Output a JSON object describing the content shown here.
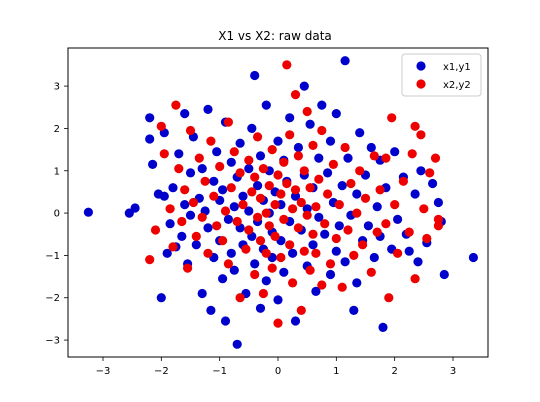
{
  "chart_data": {
    "type": "scatter",
    "title": "X1 vs X2: raw data",
    "xlabel": "",
    "ylabel": "",
    "xlim": [
      -3.6,
      3.6
    ],
    "ylim": [
      -3.4,
      3.9
    ],
    "xticks": [
      -3,
      -2,
      -1,
      0,
      1,
      2,
      3
    ],
    "yticks": [
      -3,
      -2,
      -1,
      0,
      1,
      2,
      3
    ],
    "grid": false,
    "legend_position": "top-right",
    "series": [
      {
        "name": "x1,y1",
        "color": "#0000cc",
        "points": [
          [
            -3.25,
            0.02
          ],
          [
            -2.55,
            0.0
          ],
          [
            -2.45,
            0.12
          ],
          [
            -2.2,
            2.25
          ],
          [
            -2.2,
            1.75
          ],
          [
            -2.15,
            1.15
          ],
          [
            -2.05,
            0.45
          ],
          [
            -2.0,
            -2.0
          ],
          [
            -1.95,
            0.4
          ],
          [
            -1.95,
            1.9
          ],
          [
            -1.9,
            -0.95
          ],
          [
            -1.85,
            -0.25
          ],
          [
            -1.8,
            0.6
          ],
          [
            -1.75,
            -0.8
          ],
          [
            -1.7,
            1.4
          ],
          [
            -1.65,
            -0.55
          ],
          [
            -1.6,
            2.35
          ],
          [
            -1.6,
            0.2
          ],
          [
            -1.55,
            -1.2
          ],
          [
            -1.5,
            0.95
          ],
          [
            -1.5,
            -0.05
          ],
          [
            -1.45,
            1.8
          ],
          [
            -1.4,
            -0.75
          ],
          [
            -1.35,
            0.35
          ],
          [
            -1.3,
            -1.9
          ],
          [
            -1.3,
            1.05
          ],
          [
            -1.25,
            0.05
          ],
          [
            -1.2,
            -0.35
          ],
          [
            -1.2,
            2.45
          ],
          [
            -1.15,
            -2.3
          ],
          [
            -1.1,
            0.75
          ],
          [
            -1.1,
            -1.05
          ],
          [
            -1.05,
            1.45
          ],
          [
            -1.0,
            -0.65
          ],
          [
            -1.0,
            0.3
          ],
          [
            -0.95,
            -1.55
          ],
          [
            -0.95,
            0.55
          ],
          [
            -0.9,
            -2.55
          ],
          [
            -0.9,
            2.15
          ],
          [
            -0.85,
            -0.15
          ],
          [
            -0.8,
            1.2
          ],
          [
            -0.8,
            -0.95
          ],
          [
            -0.75,
            0.15
          ],
          [
            -0.75,
            -1.35
          ],
          [
            -0.7,
            -3.1
          ],
          [
            -0.7,
            0.85
          ],
          [
            -0.65,
            -0.35
          ],
          [
            -0.65,
            1.65
          ],
          [
            -0.6,
            0.4
          ],
          [
            -0.6,
            -0.75
          ],
          [
            -0.55,
            -1.9
          ],
          [
            -0.5,
            1.05
          ],
          [
            -0.5,
            0.05
          ],
          [
            -0.45,
            -0.55
          ],
          [
            -0.45,
            2.0
          ],
          [
            -0.4,
            -1.2
          ],
          [
            -0.4,
            3.25
          ],
          [
            -0.35,
            0.65
          ],
          [
            -0.35,
            -0.2
          ],
          [
            -0.3,
            -2.25
          ],
          [
            -0.3,
            1.35
          ],
          [
            -0.25,
            -0.85
          ],
          [
            -0.25,
            0.3
          ],
          [
            -0.2,
            -1.6
          ],
          [
            -0.2,
            2.55
          ],
          [
            -0.15,
            0.0
          ],
          [
            -0.15,
            1.0
          ],
          [
            -0.1,
            -0.45
          ],
          [
            -0.1,
            -1.05
          ],
          [
            -0.05,
            0.5
          ],
          [
            0.0,
            1.7
          ],
          [
            0.0,
            -2.05
          ],
          [
            0.05,
            0.2
          ],
          [
            0.05,
            -0.65
          ],
          [
            0.1,
            1.25
          ],
          [
            0.1,
            -1.4
          ],
          [
            0.15,
            0.75
          ],
          [
            0.2,
            -0.2
          ],
          [
            0.2,
            2.25
          ],
          [
            0.25,
            -0.95
          ],
          [
            0.3,
            0.4
          ],
          [
            0.3,
            -2.55
          ],
          [
            0.35,
            1.55
          ],
          [
            0.4,
            -0.4
          ],
          [
            0.45,
            3.0
          ],
          [
            0.45,
            0.9
          ],
          [
            0.5,
            -1.25
          ],
          [
            0.5,
            0.1
          ],
          [
            0.55,
            2.1
          ],
          [
            0.6,
            -0.75
          ],
          [
            0.6,
            0.6
          ],
          [
            0.65,
            -1.85
          ],
          [
            0.7,
            1.3
          ],
          [
            0.7,
            -0.1
          ],
          [
            0.75,
            2.55
          ],
          [
            0.8,
            -0.5
          ],
          [
            0.85,
            0.95
          ],
          [
            0.9,
            -1.45
          ],
          [
            0.9,
            1.7
          ],
          [
            0.95,
            0.25
          ],
          [
            1.0,
            -0.9
          ],
          [
            1.0,
            2.35
          ],
          [
            1.05,
            -0.3
          ],
          [
            1.1,
            0.65
          ],
          [
            1.15,
            3.6
          ],
          [
            1.15,
            -1.15
          ],
          [
            1.2,
            1.3
          ],
          [
            1.25,
            -0.05
          ],
          [
            1.3,
            -2.3
          ],
          [
            1.35,
            0.45
          ],
          [
            1.35,
            -1.65
          ],
          [
            1.4,
            1.9
          ],
          [
            1.45,
            -0.65
          ],
          [
            1.5,
            0.9
          ],
          [
            1.55,
            -0.3
          ],
          [
            1.6,
            1.55
          ],
          [
            1.65,
            -1.05
          ],
          [
            1.7,
            0.15
          ],
          [
            1.75,
            -0.55
          ],
          [
            1.75,
            1.25
          ],
          [
            1.8,
            -2.7
          ],
          [
            1.85,
            0.6
          ],
          [
            1.95,
            -0.85
          ],
          [
            2.0,
            1.45
          ],
          [
            2.05,
            -0.15
          ],
          [
            2.15,
            0.85
          ],
          [
            2.2,
            -0.5
          ],
          [
            2.25,
            -0.9
          ],
          [
            2.35,
            0.45
          ],
          [
            2.4,
            -1.15
          ],
          [
            2.45,
            1.0
          ],
          [
            2.55,
            -0.7
          ],
          [
            2.65,
            0.7
          ],
          [
            2.75,
            0.25
          ],
          [
            2.8,
            -0.2
          ],
          [
            2.85,
            -1.45
          ],
          [
            3.35,
            -1.05
          ]
        ]
      },
      {
        "name": "x2,y2",
        "color": "#ee0000",
        "points": [
          [
            -2.2,
            -1.1
          ],
          [
            -2.1,
            -0.4
          ],
          [
            -2.0,
            2.05
          ],
          [
            -1.95,
            1.4
          ],
          [
            -1.85,
            0.1
          ],
          [
            -1.8,
            -0.8
          ],
          [
            -1.75,
            2.55
          ],
          [
            -1.7,
            1.05
          ],
          [
            -1.65,
            -0.2
          ],
          [
            -1.6,
            0.55
          ],
          [
            -1.55,
            -1.3
          ],
          [
            -1.5,
            1.95
          ],
          [
            -1.45,
            0.25
          ],
          [
            -1.4,
            -0.55
          ],
          [
            -1.35,
            1.3
          ],
          [
            -1.3,
            -0.1
          ],
          [
            -1.25,
            0.75
          ],
          [
            -1.2,
            -0.95
          ],
          [
            -1.15,
            1.7
          ],
          [
            -1.1,
            0.4
          ],
          [
            -1.05,
            -0.3
          ],
          [
            -1.0,
            1.1
          ],
          [
            -0.95,
            -0.65
          ],
          [
            -0.9,
            0.05
          ],
          [
            -0.85,
            2.15
          ],
          [
            -0.85,
            -1.2
          ],
          [
            -0.8,
            0.6
          ],
          [
            -0.75,
            1.45
          ],
          [
            -0.7,
            -0.2
          ],
          [
            -0.65,
            -2.0
          ],
          [
            -0.65,
            0.95
          ],
          [
            -0.6,
            0.2
          ],
          [
            -0.55,
            -0.85
          ],
          [
            -0.5,
            1.25
          ],
          [
            -0.5,
            -0.4
          ],
          [
            -0.45,
            0.5
          ],
          [
            -0.4,
            -1.45
          ],
          [
            -0.4,
            0.85
          ],
          [
            -0.35,
            -0.1
          ],
          [
            -0.35,
            1.8
          ],
          [
            -0.3,
            -0.65
          ],
          [
            -0.3,
            0.35
          ],
          [
            -0.25,
            -1.9
          ],
          [
            -0.25,
            1.05
          ],
          [
            -0.2,
            0.0
          ],
          [
            -0.2,
            -0.95
          ],
          [
            -0.15,
            0.65
          ],
          [
            -0.15,
            -0.3
          ],
          [
            -0.1,
            1.5
          ],
          [
            -0.1,
            -1.3
          ],
          [
            -0.05,
            0.2
          ],
          [
            -0.05,
            -0.55
          ],
          [
            0.0,
            0.9
          ],
          [
            0.0,
            -2.6
          ],
          [
            0.05,
            0.45
          ],
          [
            0.05,
            -1.05
          ],
          [
            0.1,
            1.2
          ],
          [
            0.1,
            -0.15
          ],
          [
            0.15,
            3.5
          ],
          [
            0.15,
            0.7
          ],
          [
            0.2,
            -0.75
          ],
          [
            0.2,
            1.85
          ],
          [
            0.25,
            0.1
          ],
          [
            0.25,
            -1.65
          ],
          [
            0.3,
            2.8
          ],
          [
            0.3,
            0.55
          ],
          [
            0.35,
            -0.35
          ],
          [
            0.35,
            1.35
          ],
          [
            0.4,
            -2.3
          ],
          [
            0.4,
            0.25
          ],
          [
            0.45,
            -0.9
          ],
          [
            0.45,
            1.0
          ],
          [
            0.5,
            -0.05
          ],
          [
            0.5,
            2.4
          ],
          [
            0.55,
            -1.35
          ],
          [
            0.55,
            0.6
          ],
          [
            0.6,
            -0.5
          ],
          [
            0.6,
            1.6
          ],
          [
            0.65,
            0.15
          ],
          [
            0.65,
            -0.95
          ],
          [
            0.7,
            0.8
          ],
          [
            0.75,
            -1.7
          ],
          [
            0.75,
            1.95
          ],
          [
            0.8,
            -0.25
          ],
          [
            0.85,
            0.45
          ],
          [
            0.9,
            -1.2
          ],
          [
            0.95,
            1.15
          ],
          [
            1.0,
            -0.6
          ],
          [
            1.05,
            0.2
          ],
          [
            1.1,
            -1.75
          ],
          [
            1.15,
            1.55
          ],
          [
            1.2,
            -0.4
          ],
          [
            1.25,
            0.7
          ],
          [
            1.3,
            -1.0
          ],
          [
            1.35,
            0.0
          ],
          [
            1.4,
            1.0
          ],
          [
            1.45,
            -0.75
          ],
          [
            1.5,
            0.35
          ],
          [
            1.6,
            -1.4
          ],
          [
            1.65,
            1.35
          ],
          [
            1.7,
            -0.45
          ],
          [
            1.75,
            0.55
          ],
          [
            1.85,
            1.3
          ],
          [
            1.85,
            -0.25
          ],
          [
            1.9,
            -2.0
          ],
          [
            1.95,
            2.25
          ],
          [
            2.0,
            0.2
          ],
          [
            2.05,
            -0.95
          ],
          [
            2.15,
            0.75
          ],
          [
            2.25,
            -0.45
          ],
          [
            2.3,
            1.4
          ],
          [
            2.35,
            -1.55
          ],
          [
            2.45,
            1.85
          ],
          [
            2.5,
            0.1
          ],
          [
            2.55,
            -0.6
          ],
          [
            2.6,
            0.95
          ],
          [
            2.75,
            -0.3
          ],
          [
            2.35,
            2.05
          ],
          [
            2.7,
            1.3
          ],
          [
            2.75,
            -0.15
          ]
        ]
      }
    ]
  }
}
